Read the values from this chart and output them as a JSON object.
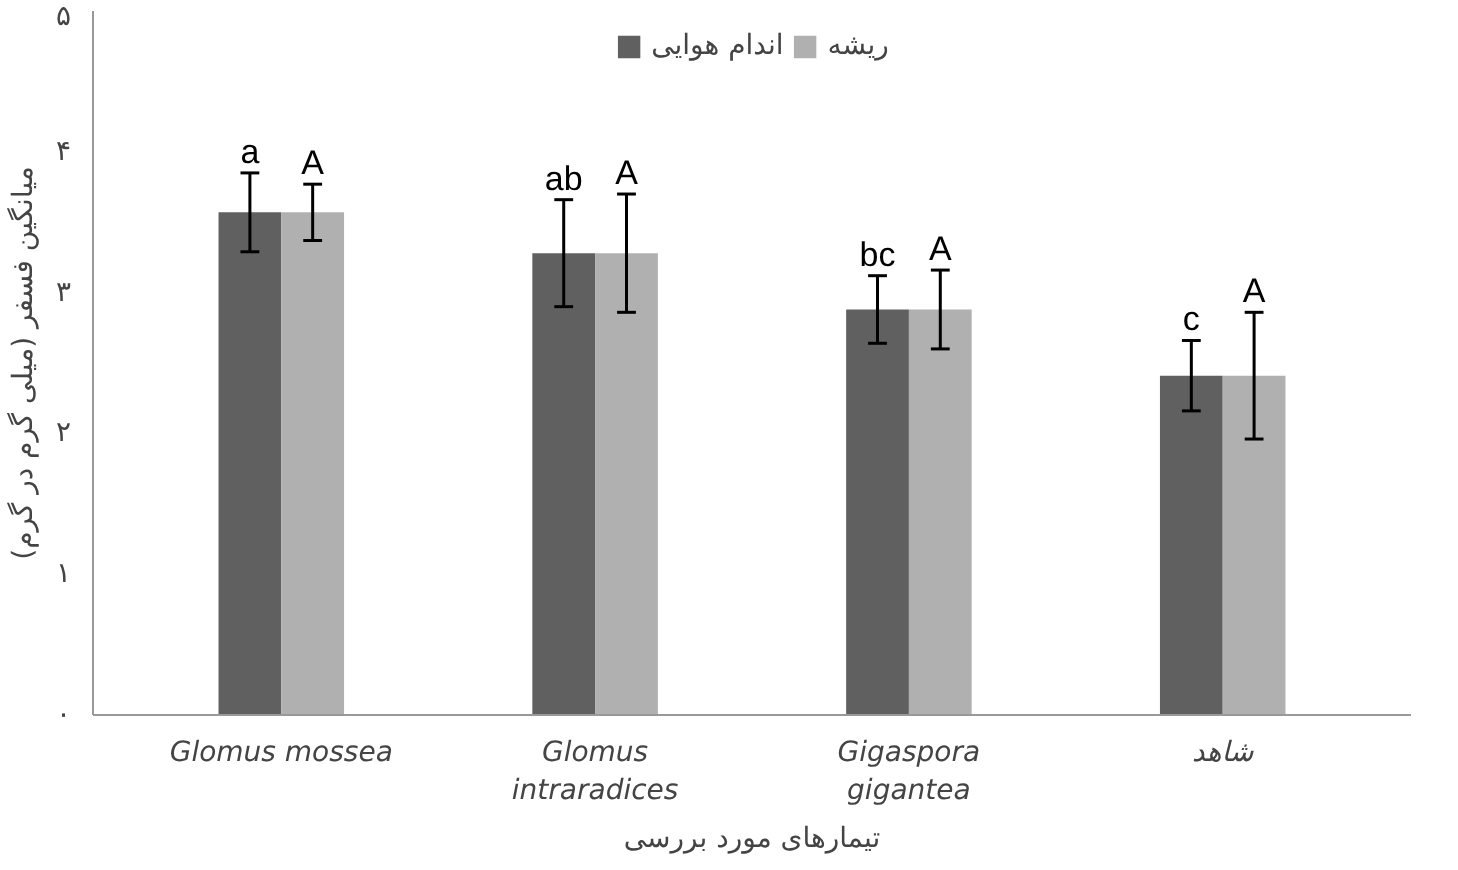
{
  "chart_data": {
    "type": "bar",
    "categories": [
      "Glomus mossea",
      "Glomus\nintraradices",
      "Gigaspora\ngigantea",
      "شاهد"
    ],
    "xlabel": "تیمارهای مورد بررسی",
    "ylabel": "میانگین فسفر (میلی گرم در گرم)",
    "ylim": [
      0,
      5
    ],
    "yticks": [
      {
        "value": 0,
        "label": "۰"
      },
      {
        "value": 1,
        "label": "۱"
      },
      {
        "value": 2,
        "label": "۲"
      },
      {
        "value": 3,
        "label": "۳"
      },
      {
        "value": 4,
        "label": "۴"
      },
      {
        "value": 5,
        "label": "۵"
      }
    ],
    "series": [
      {
        "name": "اندام هوایی",
        "color": "#606060",
        "values": [
          3.57,
          3.28,
          2.88,
          2.41
        ],
        "errors": [
          0.28,
          0.38,
          0.24,
          0.25
        ]
      },
      {
        "name": "ریشه",
        "color": "#b0b0b0",
        "values": [
          3.57,
          3.28,
          2.88,
          2.41
        ],
        "errors": [
          0.2,
          0.42,
          0.28,
          0.45
        ]
      }
    ],
    "annotations": [
      "a",
      "A",
      "ab",
      "A",
      "bc",
      "A",
      "c",
      "A"
    ],
    "legend": "top",
    "grid": false
  }
}
